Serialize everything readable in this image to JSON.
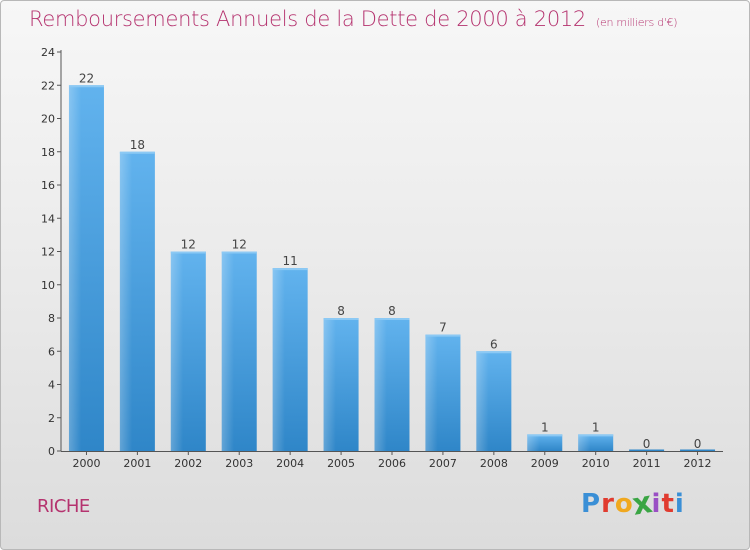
{
  "header": {
    "title": "Remboursements Annuels de la Dette de 2000 à 2012",
    "subtitle": "(en milliers d'€)"
  },
  "footer": {
    "town": "RICHE",
    "logo_letters": [
      "P",
      "r",
      "o",
      "x",
      "i",
      "t",
      "i"
    ],
    "logo_colors": [
      "#3a8fd6",
      "#e03b2f",
      "#f0a81f",
      "#3aa544",
      "#9a4fc4",
      "#e03b2f",
      "#3a8fd6"
    ]
  },
  "chart_data": {
    "type": "bar",
    "categories": [
      "2000",
      "2001",
      "2002",
      "2003",
      "2004",
      "2005",
      "2006",
      "2007",
      "2008",
      "2009",
      "2010",
      "2011",
      "2012"
    ],
    "values": [
      22,
      18,
      12,
      12,
      11,
      8,
      8,
      7,
      6,
      1,
      1,
      0,
      0
    ],
    "data_labels": [
      "22",
      "18",
      "12",
      "12",
      "11",
      "8",
      "8",
      "7",
      "6",
      "1",
      "1",
      "0",
      "0"
    ],
    "title": "Remboursements Annuels de la Dette de 2000 à 2012",
    "subtitle": "(en milliers d'€)",
    "ylim": [
      0,
      24
    ],
    "yticks": [
      0,
      2,
      4,
      6,
      8,
      10,
      12,
      14,
      16,
      18,
      20,
      22,
      24
    ],
    "grid": false,
    "bar_color": "#4a9fe0"
  }
}
